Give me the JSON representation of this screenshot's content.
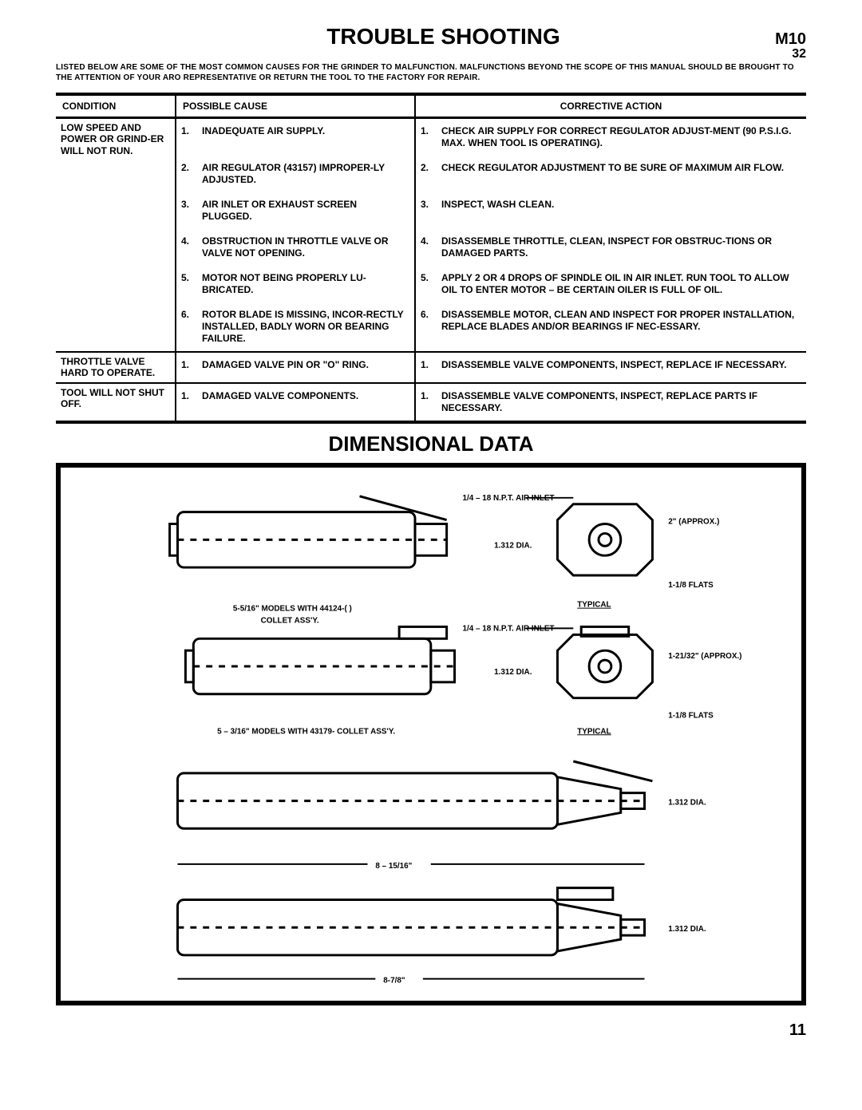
{
  "header": {
    "title": "TROUBLE SHOOTING",
    "code_top": "M10",
    "code_bottom": "32",
    "intro": "LISTED BELOW ARE SOME OF THE MOST COMMON CAUSES FOR THE GRINDER TO MALFUNCTION. MALFUNCTIONS BEYOND THE SCOPE OF THIS MANUAL SHOULD BE BROUGHT TO THE ATTENTION OF YOUR ARO REPRESENTATIVE OR RETURN THE TOOL TO THE FACTORY FOR REPAIR."
  },
  "table": {
    "col_condition": "CONDITION",
    "col_cause": "POSSIBLE CAUSE",
    "col_action": "CORRECTIVE ACTION",
    "groups": [
      {
        "condition": "LOW SPEED AND POWER OR GRIND-ER WILL NOT RUN.",
        "rows": [
          {
            "n": "1.",
            "cause": "INADEQUATE AIR SUPPLY.",
            "action": "CHECK AIR SUPPLY FOR CORRECT REGULATOR ADJUST-MENT (90 P.S.I.G. MAX. WHEN TOOL IS OPERATING)."
          },
          {
            "n": "2.",
            "cause": "AIR REGULATOR (43157) IMPROPER-LY ADJUSTED.",
            "action": "CHECK REGULATOR ADJUSTMENT TO BE SURE OF MAXIMUM AIR FLOW."
          },
          {
            "n": "3.",
            "cause": "AIR INLET OR EXHAUST SCREEN PLUGGED.",
            "action": "INSPECT, WASH CLEAN."
          },
          {
            "n": "4.",
            "cause": "OBSTRUCTION IN THROTTLE VALVE OR VALVE NOT OPENING.",
            "action": "DISASSEMBLE THROTTLE, CLEAN, INSPECT FOR OBSTRUC-TIONS OR DAMAGED PARTS."
          },
          {
            "n": "5.",
            "cause": "MOTOR NOT BEING PROPERLY LU-BRICATED.",
            "action": "APPLY 2 OR 4 DROPS OF SPINDLE OIL IN AIR INLET. RUN TOOL TO ALLOW OIL TO ENTER MOTOR – BE CERTAIN OILER IS FULL OF OIL."
          },
          {
            "n": "6.",
            "cause": "ROTOR BLADE IS MISSING, INCOR-RECTLY INSTALLED, BADLY WORN OR BEARING FAILURE.",
            "action": "DISASSEMBLE MOTOR, CLEAN AND INSPECT FOR PROPER INSTALLATION, REPLACE BLADES AND/OR BEARINGS IF NEC-ESSARY."
          }
        ]
      },
      {
        "condition": "THROTTLE VALVE HARD TO OPERATE.",
        "rows": [
          {
            "n": "1.",
            "cause": "DAMAGED VALVE PIN OR \"O\" RING.",
            "action": "DISASSEMBLE VALVE COMPONENTS, INSPECT, REPLACE IF NECESSARY."
          }
        ]
      },
      {
        "condition": "TOOL WILL NOT SHUT OFF.",
        "rows": [
          {
            "n": "1.",
            "cause": "DAMAGED VALVE COMPONENTS.",
            "action": "DISASSEMBLE VALVE COMPONENTS, INSPECT, REPLACE PARTS IF NECESSARY."
          }
        ]
      }
    ]
  },
  "dim_section": {
    "title": "DIMENSIONAL DATA",
    "labels": {
      "air_inlet": "1/4 – 18 N.P.T. AIR INLET",
      "dia": "1.312 DIA.",
      "approx2": "2\" (APPROX.)",
      "flats": "1-1/8 FLATS",
      "typical": "TYPICAL",
      "model1": "5-5/16\" MODELS WITH 44124-(  )",
      "collet": "COLLET ASS'Y.",
      "approx121": "1-21/32\" (APPROX.)",
      "model2": "5 – 3/16\"  MODELS WITH 43179- COLLET ASS'Y.",
      "len815": "8 – 15/16\"",
      "len878": "8-7/8\""
    }
  },
  "page_number": "11"
}
